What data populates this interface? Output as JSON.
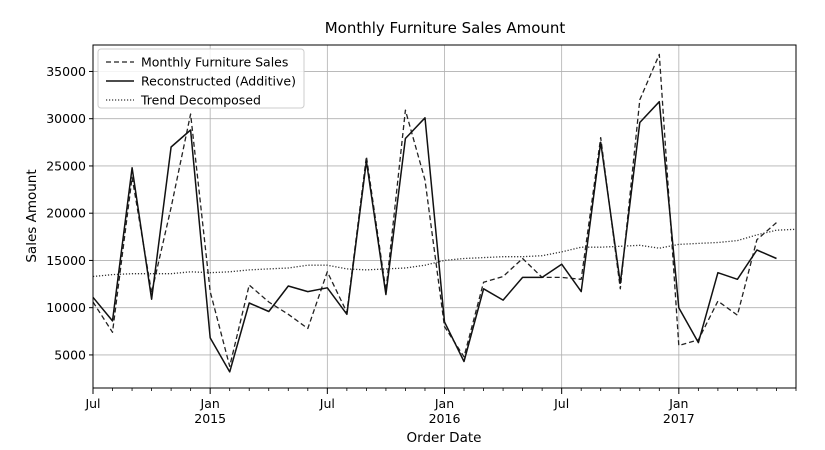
{
  "chart_data": {
    "type": "line",
    "title": "Monthly Furniture Sales Amount",
    "xlabel": "Order Date",
    "ylabel": "Sales Amount",
    "x": [
      "2014-07",
      "2014-08",
      "2014-09",
      "2014-10",
      "2014-11",
      "2014-12",
      "2015-01",
      "2015-02",
      "2015-03",
      "2015-04",
      "2015-05",
      "2015-06",
      "2015-07",
      "2015-08",
      "2015-09",
      "2015-10",
      "2015-11",
      "2015-12",
      "2016-01",
      "2016-02",
      "2016-03",
      "2016-04",
      "2016-05",
      "2016-06",
      "2016-07",
      "2016-08",
      "2016-09",
      "2016-10",
      "2016-11",
      "2016-12",
      "2017-01",
      "2017-02",
      "2017-03",
      "2017-04",
      "2017-05",
      "2017-06",
      "2017-07"
    ],
    "xlim": [
      "2014-07",
      "2017-07"
    ],
    "ylim": [
      1500,
      37800
    ],
    "yticks": [
      5000,
      10000,
      15000,
      20000,
      25000,
      30000,
      35000
    ],
    "xticks": [
      {
        "month": "2014-07",
        "label": "Jul",
        "sub": ""
      },
      {
        "month": "2015-01",
        "label": "Jan",
        "sub": "2015"
      },
      {
        "month": "2015-07",
        "label": "Jul",
        "sub": ""
      },
      {
        "month": "2016-01",
        "label": "Jan",
        "sub": "2016"
      },
      {
        "month": "2016-07",
        "label": "Jul",
        "sub": ""
      },
      {
        "month": "2017-01",
        "label": "Jan",
        "sub": "2017"
      }
    ],
    "grid": true,
    "legend_position": "top-left",
    "series": [
      {
        "name": "Monthly Furniture Sales",
        "style": "dashed",
        "color": "#222222",
        "values": [
          10600,
          7400,
          23800,
          11600,
          20600,
          30500,
          11700,
          3800,
          12400,
          10600,
          9300,
          7800,
          13800,
          9500,
          26000,
          11800,
          30900,
          23500,
          8000,
          4800,
          12700,
          13300,
          15200,
          13200,
          13200,
          13000,
          28000,
          12000,
          32000,
          36800,
          6000,
          6600,
          10700,
          9200,
          17200,
          19000,
          null
        ]
      },
      {
        "name": "Reconstructed (Additive)",
        "style": "solid",
        "color": "#111111",
        "values": [
          11100,
          8600,
          24800,
          10900,
          27000,
          28800,
          6800,
          3200,
          10500,
          9600,
          12300,
          11700,
          12100,
          9300,
          25500,
          11400,
          27900,
          30100,
          8500,
          4300,
          12000,
          10800,
          13200,
          13200,
          14600,
          11700,
          27500,
          12600,
          29600,
          31800,
          10000,
          6300,
          13700,
          13000,
          16100,
          15200,
          null
        ]
      },
      {
        "name": "Trend Decomposed",
        "style": "dotted",
        "color": "#333333",
        "values": [
          13300,
          13500,
          13600,
          13600,
          13600,
          13800,
          13700,
          13800,
          14000,
          14100,
          14200,
          14500,
          14500,
          14100,
          14000,
          14100,
          14200,
          14500,
          15000,
          15200,
          15300,
          15400,
          15400,
          15500,
          15900,
          16400,
          16400,
          16500,
          16600,
          16300,
          16700,
          16800,
          16900,
          17100,
          17700,
          18200,
          18300
        ]
      }
    ]
  }
}
